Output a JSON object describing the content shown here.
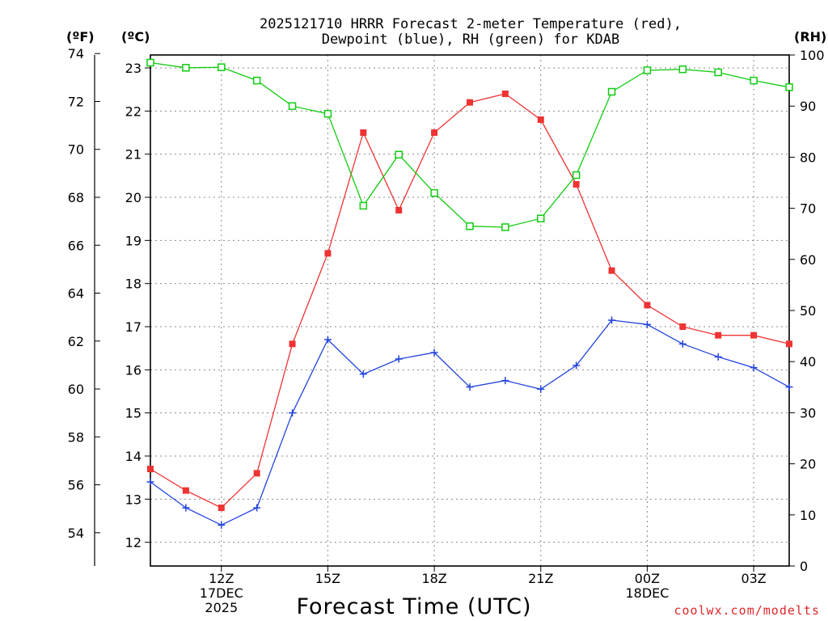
{
  "chart_data": {
    "type": "line",
    "title_line1": "2025121710 HRRR Forecast 2-meter Temperature (red),",
    "title_line2": "Dewpoint (blue), RH (green) for KDAB",
    "unit_f": "(ºF)",
    "unit_c": "(ºC)",
    "unit_rh": "(RH)",
    "xlabel": "Forecast Time (UTC)",
    "credit": "coolwx.com/modelts",
    "x_hours": [
      10,
      11,
      12,
      13,
      14,
      15,
      16,
      17,
      18,
      19,
      20,
      21,
      22,
      23,
      24,
      25,
      26,
      27,
      28
    ],
    "xlim": [
      10,
      28
    ],
    "x_ticks": [
      {
        "hour": 12,
        "lines": [
          "12Z",
          "17DEC",
          "2025"
        ]
      },
      {
        "hour": 15,
        "lines": [
          "15Z"
        ]
      },
      {
        "hour": 18,
        "lines": [
          "18Z"
        ]
      },
      {
        "hour": 21,
        "lines": [
          "21Z"
        ]
      },
      {
        "hour": 24,
        "lines": [
          "00Z",
          "18DEC"
        ]
      },
      {
        "hour": 27,
        "lines": [
          "03Z"
        ]
      }
    ],
    "ylim_c": [
      11.45,
      23.3
    ],
    "yticks_c": [
      "12",
      "13",
      "14",
      "15",
      "16",
      "17",
      "18",
      "19",
      "20",
      "21",
      "22",
      "23"
    ],
    "ylim_f": [
      52.61,
      73.94
    ],
    "yticks_f": [
      "54",
      "56",
      "58",
      "60",
      "62",
      "64",
      "66",
      "68",
      "70",
      "72",
      "74"
    ],
    "ylim_rh": [
      0,
      100
    ],
    "yticks_rh": [
      "0",
      "10",
      "20",
      "30",
      "40",
      "50",
      "60",
      "70",
      "80",
      "90",
      "100"
    ],
    "series": [
      {
        "name": "Temperature",
        "axis": "c",
        "color": "#ee3333",
        "marker": "filled-square",
        "values": [
          13.7,
          13.2,
          12.8,
          13.6,
          16.6,
          18.7,
          21.5,
          19.7,
          21.5,
          22.2,
          22.4,
          21.8,
          20.3,
          18.3,
          17.5,
          17.0,
          16.8,
          16.8,
          16.6
        ]
      },
      {
        "name": "Dewpoint",
        "axis": "c",
        "color": "#2244dd",
        "marker": "plus",
        "values": [
          13.4,
          12.8,
          12.4,
          12.8,
          15.0,
          16.7,
          15.9,
          16.25,
          16.4,
          15.6,
          15.75,
          15.55,
          16.1,
          17.15,
          17.05,
          16.6,
          16.3,
          16.05,
          15.6
        ]
      },
      {
        "name": "RH",
        "axis": "rh",
        "color": "#11cc11",
        "marker": "open-square",
        "values": [
          98.5,
          97.5,
          97.6,
          95.0,
          90.0,
          88.5,
          70.5,
          80.5,
          73.0,
          66.5,
          66.3,
          68.0,
          76.5,
          92.8,
          97.0,
          97.2,
          96.6,
          95.0,
          93.7
        ]
      }
    ]
  }
}
